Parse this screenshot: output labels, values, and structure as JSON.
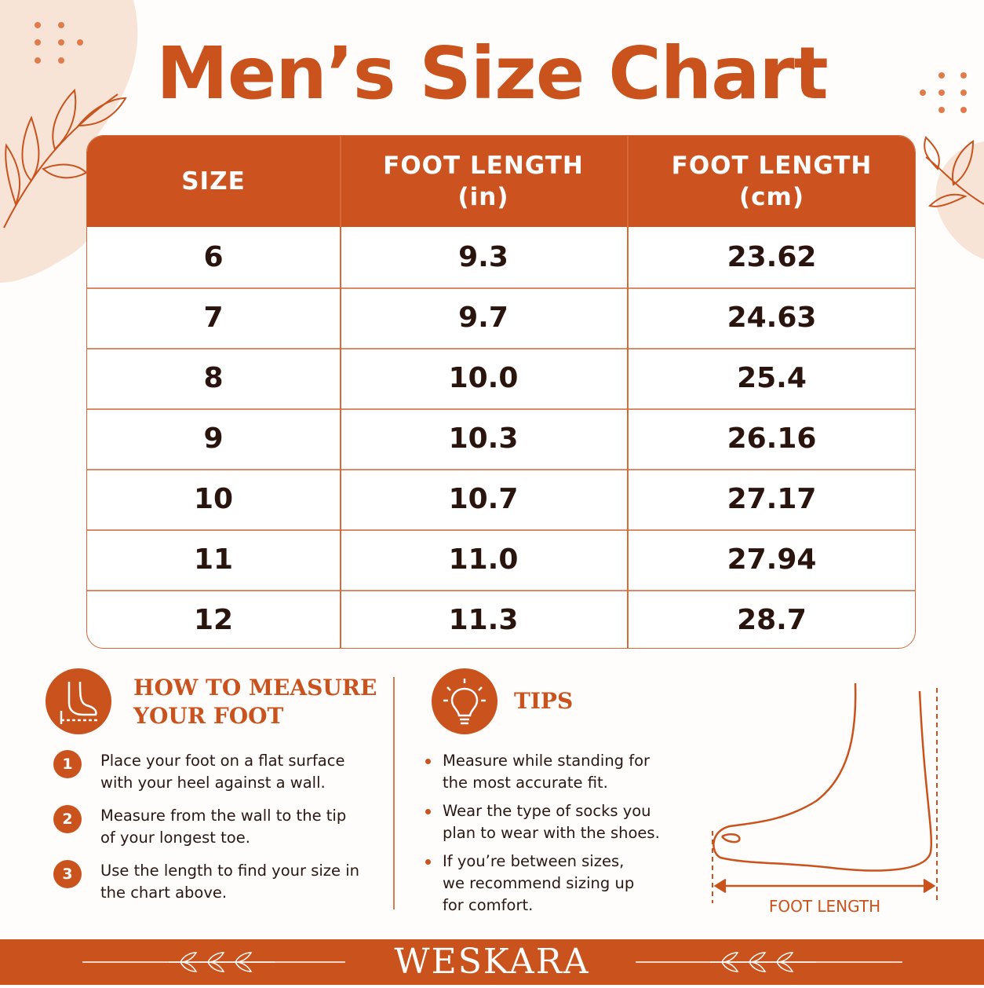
{
  "header": {
    "title": "Men’s Size Chart"
  },
  "table": {
    "columns": [
      {
        "label": "SIZE"
      },
      {
        "label": "FOOT LENGTH",
        "unit": "(in)"
      },
      {
        "label": "FOOT LENGTH",
        "unit": "(cm)"
      }
    ],
    "rows": [
      [
        "6",
        "9.3",
        "23.62"
      ],
      [
        "7",
        "9.7",
        "24.63"
      ],
      [
        "8",
        "10.0",
        "25.4"
      ],
      [
        "9",
        "10.3",
        "26.16"
      ],
      [
        "10",
        "10.7",
        "27.17"
      ],
      [
        "11",
        "11.0",
        "27.94"
      ],
      [
        "12",
        "11.3",
        "28.7"
      ]
    ]
  },
  "measure": {
    "title": [
      "HOW TO MEASURE",
      "YOUR FOOT"
    ],
    "steps": [
      {
        "number": "1",
        "text": "Place your foot on a flat surface with your heel against a wall."
      },
      {
        "number": "2",
        "text": "Measure from the wall to the tip of your longest toe."
      },
      {
        "number": "3",
        "text": "Use the length to find your size in the chart above."
      }
    ]
  },
  "tips": {
    "title": "TIPS",
    "items": [
      "Measure while standing for the most accurate fit.",
      "Wear the type of socks you plan to wear with the shoes.",
      "If you’re between sizes, we recommend sizing up for comfort."
    ]
  },
  "diagram": {
    "label": "FOOT LENGTH"
  },
  "footer": {
    "brand": "WESKARA"
  }
}
